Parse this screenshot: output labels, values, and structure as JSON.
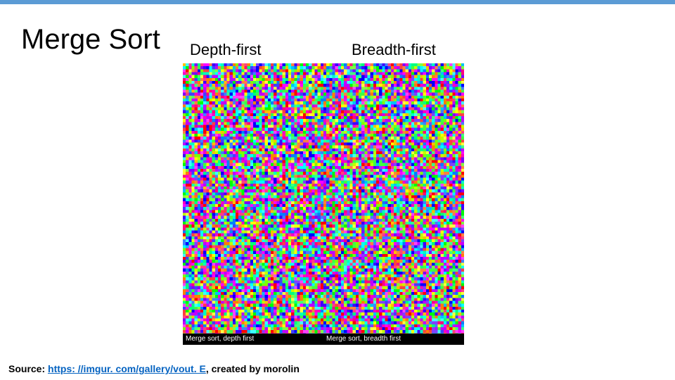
{
  "top_bar_color": "#5b9bd5",
  "title": "Merge Sort",
  "labels": {
    "depth": "Depth-first",
    "breadth": "Breadth-first"
  },
  "noise": {
    "grid": 96,
    "palette": [
      "#ff0000",
      "#ff7f00",
      "#ffff00",
      "#ffbf00",
      "#7fff00",
      "#00ff00",
      "#00ff7f",
      "#00ffff",
      "#007fff",
      "#0000ff",
      "#3f00ff",
      "#7f00ff",
      "#bf00ff",
      "#ff00ff",
      "#ff007f",
      "#ff4040",
      "#40ff40",
      "#4040ff",
      "#ff40ff",
      "#40ffff",
      "#ffff40",
      "#ff8040",
      "#80ff40",
      "#4080ff",
      "#ff4080",
      "#8040ff",
      "#40ff80",
      "#c0ff00",
      "#00c0ff",
      "#c000ff",
      "#ff00c0",
      "#00ffc0"
    ],
    "caption_left": "Merge sort, depth first",
    "caption_right": "Merge sort, breadth first"
  },
  "source": {
    "prefix": "Source: ",
    "link_text": "https: //imgur. com/gallery/vout. E",
    "link_href": "https://imgur.com/gallery/voutE",
    "suffix": ", created by morolin"
  }
}
